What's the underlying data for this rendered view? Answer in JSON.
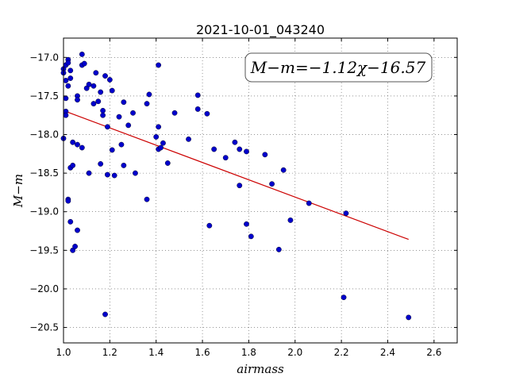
{
  "chart_data": {
    "type": "scatter",
    "title": "2021-10-01_043240",
    "xlabel": "airmass",
    "ylabel": "M−m",
    "xlim": [
      1.0,
      2.7
    ],
    "ylim": [
      -20.7,
      -16.75
    ],
    "y_inverted": true,
    "grid": true,
    "x_ticks": [
      1.0,
      1.2,
      1.4,
      1.6,
      1.8,
      2.0,
      2.2,
      2.4,
      2.6
    ],
    "x_tick_labels": [
      "1.0",
      "1.2",
      "1.4",
      "1.6",
      "1.8",
      "2.0",
      "2.2",
      "2.4",
      "2.6"
    ],
    "y_ticks": [
      -17.0,
      -17.5,
      -18.0,
      -18.5,
      -19.0,
      -19.5,
      -20.0,
      -20.5
    ],
    "y_tick_labels": [
      "−17.0",
      "−17.5",
      "−18.0",
      "−18.5",
      "−19.0",
      "−19.5",
      "−20.0",
      "−20.5"
    ],
    "annotation": "M−m=−1.12χ−16.57",
    "fit": {
      "slope": -1.12,
      "intercept": -16.57,
      "x_range": [
        1.01,
        2.49
      ],
      "color": "#cc0000"
    },
    "marker_color": "#0000cc",
    "points": [
      [
        1.0,
        -17.15
      ],
      [
        1.0,
        -17.2
      ],
      [
        1.0,
        -18.05
      ],
      [
        1.01,
        -17.1
      ],
      [
        1.01,
        -17.3
      ],
      [
        1.01,
        -17.53
      ],
      [
        1.01,
        -17.7
      ],
      [
        1.01,
        -17.75
      ],
      [
        1.02,
        -17.03
      ],
      [
        1.02,
        -17.07
      ],
      [
        1.02,
        -17.37
      ],
      [
        1.02,
        -18.84
      ],
      [
        1.02,
        -18.86
      ],
      [
        1.03,
        -17.17
      ],
      [
        1.03,
        -17.27
      ],
      [
        1.03,
        -18.43
      ],
      [
        1.03,
        -19.13
      ],
      [
        1.04,
        -18.1
      ],
      [
        1.04,
        -18.4
      ],
      [
        1.04,
        -19.5
      ],
      [
        1.05,
        -19.45
      ],
      [
        1.06,
        -17.5
      ],
      [
        1.06,
        -17.55
      ],
      [
        1.06,
        -18.13
      ],
      [
        1.06,
        -19.24
      ],
      [
        1.08,
        -16.96
      ],
      [
        1.08,
        -17.1
      ],
      [
        1.09,
        -17.08
      ],
      [
        1.08,
        -18.17
      ],
      [
        1.1,
        -17.4
      ],
      [
        1.11,
        -17.35
      ],
      [
        1.11,
        -18.5
      ],
      [
        1.13,
        -17.37
      ],
      [
        1.13,
        -17.6
      ],
      [
        1.14,
        -17.2
      ],
      [
        1.15,
        -17.57
      ],
      [
        1.16,
        -17.45
      ],
      [
        1.16,
        -18.38
      ],
      [
        1.17,
        -17.69
      ],
      [
        1.17,
        -17.75
      ],
      [
        1.18,
        -17.24
      ],
      [
        1.2,
        -17.29
      ],
      [
        1.19,
        -17.9
      ],
      [
        1.19,
        -18.52
      ],
      [
        1.21,
        -18.2
      ],
      [
        1.21,
        -17.43
      ],
      [
        1.22,
        -18.53
      ],
      [
        1.18,
        -20.33
      ],
      [
        1.24,
        -17.77
      ],
      [
        1.25,
        -18.13
      ],
      [
        1.26,
        -17.58
      ],
      [
        1.26,
        -18.4
      ],
      [
        1.28,
        -17.88
      ],
      [
        1.3,
        -17.72
      ],
      [
        1.31,
        -18.5
      ],
      [
        1.36,
        -17.6
      ],
      [
        1.36,
        -18.84
      ],
      [
        1.37,
        -17.48
      ],
      [
        1.4,
        -18.03
      ],
      [
        1.41,
        -17.1
      ],
      [
        1.41,
        -17.9
      ],
      [
        1.41,
        -18.19
      ],
      [
        1.42,
        -18.17
      ],
      [
        1.43,
        -18.11
      ],
      [
        1.45,
        -18.37
      ],
      [
        1.48,
        -17.72
      ],
      [
        1.54,
        -18.06
      ],
      [
        1.58,
        -17.49
      ],
      [
        1.58,
        -17.67
      ],
      [
        1.62,
        -17.73
      ],
      [
        1.63,
        -19.18
      ],
      [
        1.65,
        -18.19
      ],
      [
        1.7,
        -18.3
      ],
      [
        1.74,
        -18.1
      ],
      [
        1.76,
        -18.19
      ],
      [
        1.76,
        -18.66
      ],
      [
        1.79,
        -18.22
      ],
      [
        1.79,
        -19.16
      ],
      [
        1.81,
        -19.32
      ],
      [
        1.87,
        -18.26
      ],
      [
        1.9,
        -18.64
      ],
      [
        1.93,
        -19.49
      ],
      [
        1.95,
        -18.46
      ],
      [
        1.98,
        -19.11
      ],
      [
        2.06,
        -18.89
      ],
      [
        2.21,
        -20.11
      ],
      [
        2.22,
        -19.02
      ],
      [
        2.49,
        -20.37
      ]
    ]
  }
}
